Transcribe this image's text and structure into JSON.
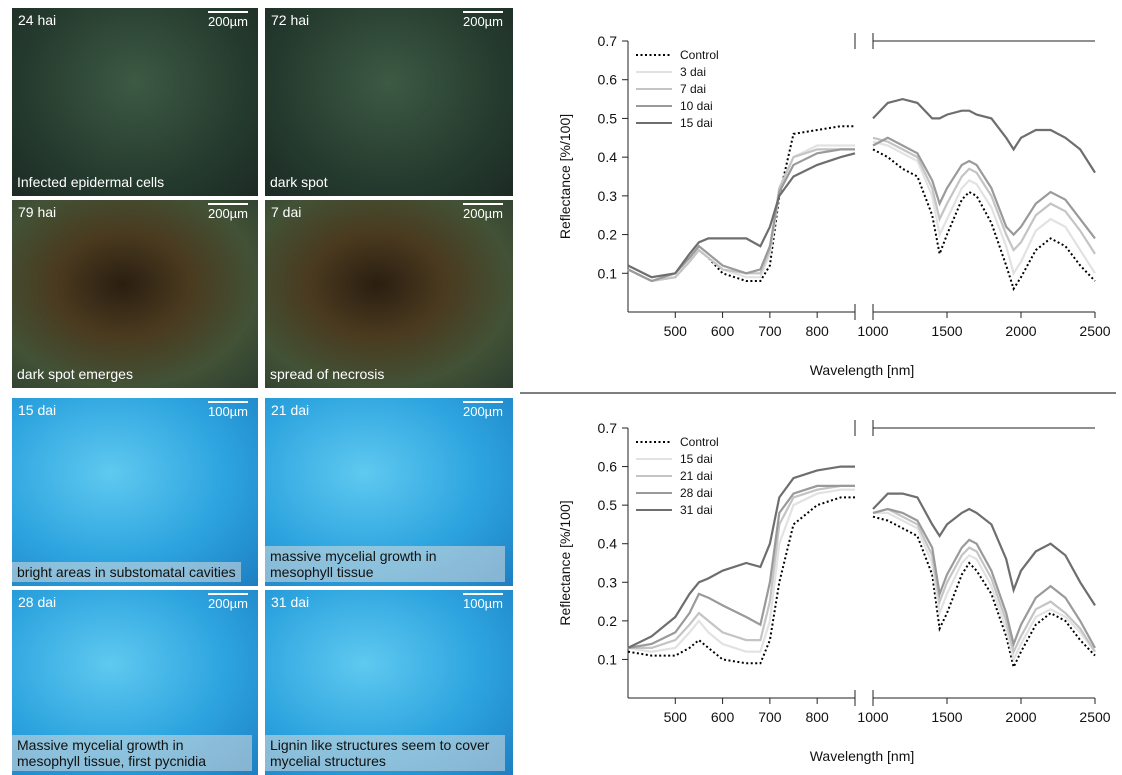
{
  "micrographs": [
    {
      "time": "24 hai",
      "scale": "200µm",
      "caption": "Infected epidermal cells"
    },
    {
      "time": "72 hai",
      "scale": "200µm",
      "caption": "dark spot"
    },
    {
      "time": "79 hai",
      "scale": "200µm",
      "caption": "dark spot emerges"
    },
    {
      "time": "7 dai",
      "scale": "200µm",
      "caption": "spread of necrosis"
    },
    {
      "time": "15 dai",
      "scale": "100µm",
      "caption": "bright areas in substomatal cavities"
    },
    {
      "time": "21 dai",
      "scale": "200µm",
      "caption": "massive mycelial growth in mesophyll tissue"
    },
    {
      "time": "28 dai",
      "scale": "200µm",
      "caption": "Massive mycelial growth in mesophyll tissue, first pycnidia"
    },
    {
      "time": "31 dai",
      "scale": "100µm",
      "caption": "Lignin like structures seem to cover mycelial structures"
    }
  ],
  "chart_data": [
    {
      "type": "line",
      "x_label": "Wavelength [nm]",
      "y_label": "Reflectance [%/100]",
      "x": [
        400,
        450,
        500,
        530,
        550,
        570,
        600,
        650,
        680,
        700,
        720,
        750,
        800,
        850,
        880,
        1000,
        1100,
        1200,
        1300,
        1400,
        1450,
        1500,
        1600,
        1650,
        1700,
        1800,
        1900,
        1950,
        2000,
        2100,
        2200,
        2300,
        2400,
        2500
      ],
      "xlims": [
        [
          400,
          880
        ],
        [
          1000,
          2500
        ]
      ],
      "xticks": [
        500,
        600,
        700,
        800,
        1000,
        1500,
        2000,
        2500
      ],
      "ylim": [
        0,
        0.7
      ],
      "yticks": [
        0.1,
        0.2,
        0.3,
        0.4,
        0.5,
        0.6,
        0.7
      ],
      "legend": "upper-left",
      "series": [
        {
          "name": "Control",
          "color": "#000000",
          "style": "dotted",
          "values": [
            0.11,
            0.08,
            0.09,
            0.13,
            0.16,
            0.14,
            0.1,
            0.08,
            0.08,
            0.12,
            0.3,
            0.46,
            0.47,
            0.48,
            0.48,
            0.42,
            0.4,
            0.37,
            0.35,
            0.25,
            0.15,
            0.2,
            0.29,
            0.31,
            0.3,
            0.23,
            0.12,
            0.06,
            0.09,
            0.16,
            0.19,
            0.17,
            0.12,
            0.08
          ]
        },
        {
          "name": "3 dai",
          "color": "#e2e2e2",
          "style": "solid",
          "values": [
            0.11,
            0.08,
            0.09,
            0.13,
            0.16,
            0.14,
            0.11,
            0.09,
            0.09,
            0.15,
            0.31,
            0.4,
            0.43,
            0.43,
            0.43,
            0.44,
            0.43,
            0.41,
            0.39,
            0.3,
            0.2,
            0.24,
            0.32,
            0.34,
            0.33,
            0.27,
            0.17,
            0.1,
            0.13,
            0.21,
            0.24,
            0.22,
            0.16,
            0.1
          ]
        },
        {
          "name": "7 dai",
          "color": "#c4c4c4",
          "style": "solid",
          "values": [
            0.11,
            0.08,
            0.09,
            0.13,
            0.16,
            0.14,
            0.11,
            0.1,
            0.1,
            0.16,
            0.32,
            0.4,
            0.42,
            0.42,
            0.42,
            0.45,
            0.44,
            0.42,
            0.4,
            0.32,
            0.24,
            0.28,
            0.35,
            0.37,
            0.36,
            0.3,
            0.2,
            0.16,
            0.18,
            0.25,
            0.28,
            0.26,
            0.21,
            0.15
          ]
        },
        {
          "name": "10 dai",
          "color": "#9a9a9a",
          "style": "solid",
          "values": [
            0.11,
            0.08,
            0.1,
            0.14,
            0.17,
            0.15,
            0.12,
            0.1,
            0.11,
            0.17,
            0.31,
            0.38,
            0.41,
            0.42,
            0.42,
            0.43,
            0.45,
            0.43,
            0.41,
            0.34,
            0.28,
            0.32,
            0.38,
            0.39,
            0.38,
            0.32,
            0.22,
            0.2,
            0.22,
            0.28,
            0.31,
            0.29,
            0.24,
            0.19
          ]
        },
        {
          "name": "15 dai",
          "color": "#6e6e6e",
          "style": "solid",
          "values": [
            0.12,
            0.09,
            0.1,
            0.15,
            0.18,
            0.19,
            0.19,
            0.19,
            0.17,
            0.22,
            0.3,
            0.35,
            0.38,
            0.4,
            0.41,
            0.5,
            0.54,
            0.55,
            0.54,
            0.5,
            0.5,
            0.51,
            0.52,
            0.52,
            0.51,
            0.5,
            0.45,
            0.42,
            0.45,
            0.47,
            0.47,
            0.45,
            0.42,
            0.36
          ]
        }
      ]
    },
    {
      "type": "line",
      "x_label": "Wavelength [nm]",
      "y_label": "Reflectance [%/100]",
      "x": [
        400,
        450,
        500,
        530,
        550,
        570,
        600,
        650,
        680,
        700,
        720,
        750,
        800,
        850,
        880,
        1000,
        1100,
        1200,
        1300,
        1400,
        1450,
        1500,
        1600,
        1650,
        1700,
        1800,
        1900,
        1950,
        2000,
        2100,
        2200,
        2300,
        2400,
        2500
      ],
      "xlims": [
        [
          400,
          880
        ],
        [
          1000,
          2500
        ]
      ],
      "xticks": [
        500,
        600,
        700,
        800,
        1000,
        1500,
        2000,
        2500
      ],
      "ylim": [
        0,
        0.7
      ],
      "yticks": [
        0.1,
        0.2,
        0.3,
        0.4,
        0.5,
        0.6,
        0.7
      ],
      "legend": "upper-left",
      "series": [
        {
          "name": "Control",
          "color": "#000000",
          "style": "dotted",
          "values": [
            0.12,
            0.11,
            0.11,
            0.13,
            0.15,
            0.13,
            0.1,
            0.09,
            0.09,
            0.15,
            0.3,
            0.45,
            0.5,
            0.52,
            0.52,
            0.47,
            0.46,
            0.44,
            0.42,
            0.32,
            0.18,
            0.22,
            0.32,
            0.35,
            0.33,
            0.27,
            0.16,
            0.08,
            0.12,
            0.19,
            0.22,
            0.2,
            0.15,
            0.11
          ]
        },
        {
          "name": "15 dai",
          "color": "#e2e2e2",
          "style": "solid",
          "values": [
            0.13,
            0.12,
            0.13,
            0.17,
            0.2,
            0.17,
            0.14,
            0.12,
            0.12,
            0.2,
            0.4,
            0.5,
            0.53,
            0.54,
            0.54,
            0.48,
            0.48,
            0.46,
            0.44,
            0.35,
            0.22,
            0.27,
            0.35,
            0.37,
            0.36,
            0.29,
            0.18,
            0.1,
            0.14,
            0.21,
            0.23,
            0.21,
            0.17,
            0.12
          ]
        },
        {
          "name": "21 dai",
          "color": "#c4c4c4",
          "style": "solid",
          "values": [
            0.13,
            0.13,
            0.15,
            0.19,
            0.22,
            0.2,
            0.17,
            0.15,
            0.15,
            0.25,
            0.45,
            0.52,
            0.54,
            0.55,
            0.55,
            0.48,
            0.49,
            0.47,
            0.45,
            0.37,
            0.25,
            0.3,
            0.37,
            0.39,
            0.38,
            0.31,
            0.2,
            0.12,
            0.16,
            0.23,
            0.25,
            0.22,
            0.18,
            0.12
          ]
        },
        {
          "name": "28 dai",
          "color": "#9a9a9a",
          "style": "solid",
          "values": [
            0.13,
            0.14,
            0.17,
            0.22,
            0.27,
            0.26,
            0.24,
            0.21,
            0.19,
            0.3,
            0.48,
            0.53,
            0.55,
            0.55,
            0.55,
            0.48,
            0.49,
            0.48,
            0.46,
            0.39,
            0.27,
            0.32,
            0.39,
            0.41,
            0.4,
            0.33,
            0.22,
            0.14,
            0.19,
            0.26,
            0.29,
            0.26,
            0.2,
            0.13
          ]
        },
        {
          "name": "31 dai",
          "color": "#6e6e6e",
          "style": "solid",
          "values": [
            0.13,
            0.16,
            0.21,
            0.27,
            0.3,
            0.31,
            0.33,
            0.35,
            0.34,
            0.4,
            0.52,
            0.57,
            0.59,
            0.6,
            0.6,
            0.49,
            0.53,
            0.53,
            0.52,
            0.45,
            0.42,
            0.45,
            0.48,
            0.49,
            0.48,
            0.45,
            0.36,
            0.28,
            0.33,
            0.38,
            0.4,
            0.37,
            0.3,
            0.24
          ]
        }
      ]
    }
  ]
}
